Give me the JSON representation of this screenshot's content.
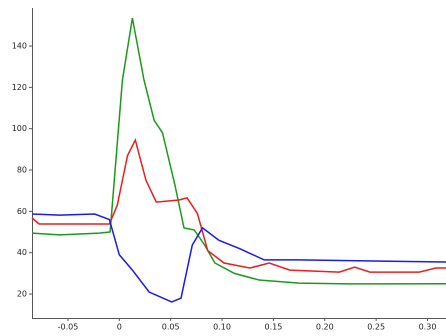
{
  "chart_data": {
    "type": "line",
    "xlim": [
      -0.085,
      0.318
    ],
    "ylim": [
      8.4,
      158.4
    ],
    "xticks": [
      -0.05,
      0,
      0.05,
      {
        "value": 0.1,
        "label": "0.10"
      },
      0.15,
      {
        "value": 0.2,
        "label": "0.20"
      },
      0.25,
      {
        "value": 0.3,
        "label": "0.30"
      }
    ],
    "yticks": [
      20,
      40,
      60,
      80,
      100,
      120,
      140
    ],
    "series": [
      {
        "color": "#1a9a1a",
        "x": [
          -0.085,
          -0.058,
          -0.0195,
          -0.009,
          0.003,
          0.0127,
          0.024,
          0.034,
          0.042,
          0.054,
          0.063,
          0.073,
          0.083,
          0.093,
          0.112,
          0.136,
          0.175,
          0.224,
          0.318
        ],
        "values": [
          49.5,
          48.6,
          49.5,
          50,
          123.5,
          153.5,
          123.5,
          104,
          98,
          73,
          52,
          51,
          43.7,
          35,
          30,
          26.8,
          25.3,
          24.9,
          25
        ]
      },
      {
        "color": "#ee1c1c",
        "x": [
          -0.085,
          -0.078,
          -0.039,
          -0.0097,
          -0.002,
          0.008,
          0.0156,
          0.026,
          0.036,
          0.058,
          0.066,
          0.076,
          0.086,
          0.102,
          0.127,
          0.146,
          0.166,
          0.214,
          0.229,
          0.244,
          0.292,
          0.308,
          0.318
        ],
        "values": [
          56.8,
          53.9,
          53.9,
          53.9,
          63,
          87,
          94.5,
          75,
          64.5,
          65.5,
          66.5,
          59,
          41,
          35,
          32.6,
          35,
          31.6,
          30.6,
          33,
          30.6,
          30.6,
          32.6,
          32.6
        ]
      },
      {
        "color": "#1a1aee",
        "x": [
          -0.085,
          -0.058,
          -0.024,
          -0.0097,
          0,
          0.0127,
          0.029,
          0.051,
          0.06,
          0.071,
          0.081,
          0.097,
          0.117,
          0.141,
          0.175,
          0.318
        ],
        "values": [
          58.7,
          58.2,
          58.7,
          56,
          39,
          31.6,
          21,
          16.2,
          18,
          43.7,
          52,
          46,
          42,
          36.5,
          36.5,
          35.5
        ]
      }
    ]
  }
}
